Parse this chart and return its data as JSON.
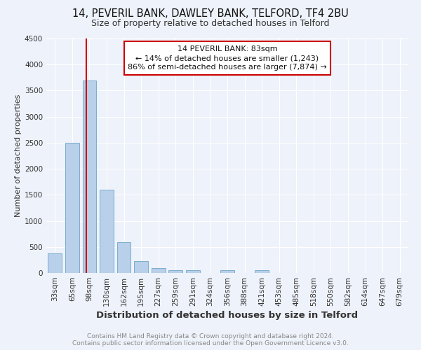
{
  "title": "14, PEVERIL BANK, DAWLEY BANK, TELFORD, TF4 2BU",
  "subtitle": "Size of property relative to detached houses in Telford",
  "xlabel": "Distribution of detached houses by size in Telford",
  "ylabel": "Number of detached properties",
  "categories": [
    "33sqm",
    "65sqm",
    "98sqm",
    "130sqm",
    "162sqm",
    "195sqm",
    "227sqm",
    "259sqm",
    "291sqm",
    "324sqm",
    "356sqm",
    "388sqm",
    "421sqm",
    "453sqm",
    "485sqm",
    "518sqm",
    "550sqm",
    "582sqm",
    "614sqm",
    "647sqm",
    "679sqm"
  ],
  "values": [
    380,
    2500,
    3700,
    1600,
    590,
    230,
    100,
    55,
    50,
    0,
    50,
    0,
    50,
    0,
    0,
    0,
    0,
    0,
    0,
    0,
    0
  ],
  "bar_color": "#b8d0ea",
  "bar_edge_color": "#7aaecd",
  "ylim": [
    0,
    4500
  ],
  "yticks": [
    0,
    500,
    1000,
    1500,
    2000,
    2500,
    3000,
    3500,
    4000,
    4500
  ],
  "red_line_x": 1.82,
  "red_line_color": "#cc0000",
  "annotation_text": "14 PEVERIL BANK: 83sqm\n← 14% of detached houses are smaller (1,243)\n86% of semi-detached houses are larger (7,874) →",
  "annotation_box_color": "#ffffff",
  "annotation_box_edge_color": "#cc0000",
  "footer_text": "Contains HM Land Registry data © Crown copyright and database right 2024.\nContains public sector information licensed under the Open Government Licence v3.0.",
  "background_color": "#eef2fa",
  "grid_color": "#ffffff",
  "title_fontsize": 10.5,
  "subtitle_fontsize": 9,
  "xlabel_fontsize": 9.5,
  "ylabel_fontsize": 8,
  "tick_fontsize": 7.5,
  "footer_fontsize": 6.5
}
